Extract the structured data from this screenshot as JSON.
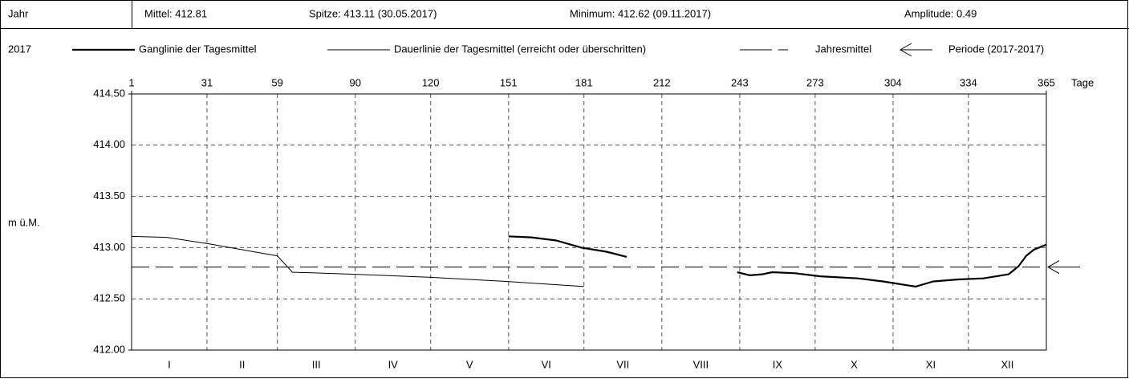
{
  "header": {
    "row_label": "Jahr",
    "mean": "Mittel: 412.81",
    "peak": "Spitze: 413.11 (30.05.2017)",
    "minimum": "Minimum: 412.62 (09.11.2017)",
    "amplitude": "Amplitude: 0.49"
  },
  "chart_data": {
    "type": "line",
    "year": "2017",
    "y_label": "m ü.M.",
    "x_unit": "Tage",
    "xlim": [
      1,
      365
    ],
    "xticks": [
      1,
      31,
      59,
      90,
      120,
      151,
      181,
      212,
      243,
      273,
      304,
      334,
      365
    ],
    "ylim": [
      412,
      414.5
    ],
    "yticks": [
      {
        "value": 412,
        "label": "412.00"
      },
      {
        "value": 412.5,
        "label": "412.50"
      },
      {
        "value": 413,
        "label": "413.00"
      },
      {
        "value": 413.5,
        "label": "413.50"
      },
      {
        "value": 414,
        "label": "414.00"
      },
      {
        "value": 414.5,
        "label": "414.50"
      }
    ],
    "months": [
      "I",
      "II",
      "III",
      "IV",
      "V",
      "VI",
      "VII",
      "VIII",
      "IX",
      "X",
      "XI",
      "XII"
    ],
    "grid": true,
    "series": [
      {
        "name": "Ganglinie der Tagesmittel",
        "color": "#000000",
        "width": 2.2,
        "x": [
          151,
          160,
          170,
          180,
          190,
          198,
          220,
          242,
          247,
          252,
          256,
          265,
          275,
          290,
          300,
          313,
          320,
          330,
          340,
          350,
          354,
          357,
          360,
          365
        ],
        "values": [
          413.11,
          413.1,
          413.07,
          413.0,
          412.96,
          412.91,
          null,
          412.76,
          412.73,
          412.74,
          412.76,
          412.75,
          412.72,
          412.7,
          412.67,
          412.62,
          412.67,
          412.69,
          412.7,
          412.74,
          412.82,
          412.92,
          412.98,
          413.03
        ]
      },
      {
        "name": "Dauerlinie der Tagesmittel (erreicht oder überschritten)",
        "color": "#000000",
        "width": 1,
        "x": [
          1,
          15,
          31,
          45,
          59,
          62,
          65,
          90,
          120,
          150,
          181
        ],
        "values": [
          413.11,
          413.1,
          413.04,
          412.98,
          412.92,
          412.84,
          412.76,
          412.74,
          412.71,
          412.67,
          412.62
        ]
      }
    ],
    "mean_line": {
      "name": "Jahresmittel",
      "value": 412.81
    },
    "period": {
      "name": "Periode (2017-2017)"
    }
  }
}
